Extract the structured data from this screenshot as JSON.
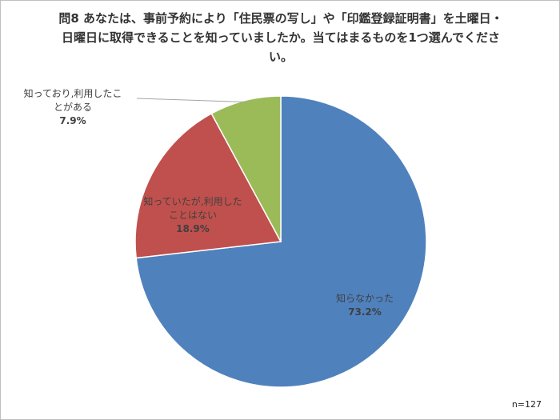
{
  "chart_data": {
    "type": "pie",
    "title": "問8 あなたは、事前予約により「住民票の写し」や「印鑑登録証明書」を土曜日・日曜日に取得できることを知っていましたか。当てはまるものを1つ選んでください。",
    "categories": [
      "知らなかった",
      "知っていたが,利用したことはない",
      "知っており,利用したことがある"
    ],
    "values": [
      73.2,
      18.9,
      7.9
    ],
    "value_labels": [
      "73.2%",
      "18.9%",
      "7.9%"
    ],
    "colors": [
      "#4f81bd",
      "#c0504d",
      "#9bbb59"
    ],
    "note": "n=127"
  }
}
